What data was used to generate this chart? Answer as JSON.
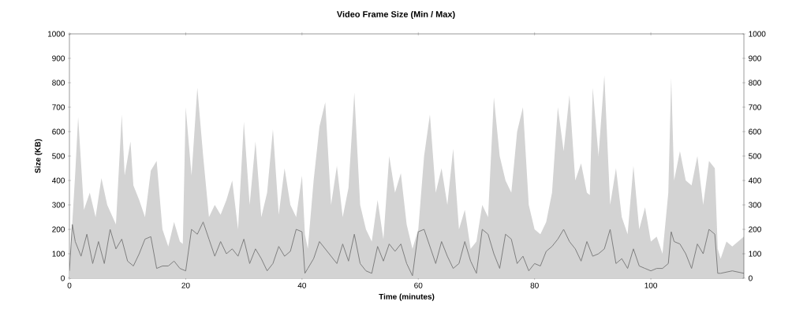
{
  "chart_data": {
    "type": "area",
    "title": "Video Frame Size (Min / Max)",
    "xlabel": "Time (minutes)",
    "ylabel": "Size (KB)",
    "xlim": [
      0,
      116
    ],
    "xticks": [
      0,
      20,
      40,
      60,
      80,
      100
    ],
    "ylim": [
      0,
      1000
    ],
    "yticks": [
      0,
      100,
      200,
      300,
      400,
      500,
      600,
      700,
      800,
      900,
      1000
    ],
    "y2lim": [
      0,
      1000
    ],
    "y2ticks": [
      0,
      100,
      200,
      300,
      400,
      500,
      600,
      700,
      800,
      900,
      1000
    ],
    "series": [
      {
        "color": "#d3d3d3",
        "x": [
          0,
          0.5,
          1,
          1.5,
          2.5,
          3.5,
          4.5,
          5.5,
          6.5,
          8,
          9,
          9.5,
          10.5,
          11,
          12,
          13,
          14,
          15,
          16,
          17,
          18,
          19,
          19.5,
          20,
          21,
          22,
          23,
          24,
          25,
          26,
          27,
          28,
          29,
          30,
          31,
          32,
          33,
          34,
          35,
          36,
          37,
          38,
          39,
          40,
          40.5,
          41,
          42,
          43,
          44,
          45,
          46,
          47,
          48,
          49,
          50,
          51,
          52,
          53,
          54,
          55,
          56,
          57,
          58,
          59,
          60,
          61,
          62,
          63,
          64,
          65,
          66,
          67,
          68,
          69,
          70,
          71,
          72,
          73,
          74,
          75,
          76,
          77,
          78,
          79,
          80,
          81,
          82,
          83,
          84,
          85,
          86,
          87,
          88,
          89,
          89.5,
          90,
          91,
          92,
          93,
          94,
          95,
          96,
          97,
          98,
          99,
          100,
          101,
          102,
          103,
          103.5,
          104,
          105,
          106,
          107,
          108,
          109,
          110,
          111,
          111.5,
          112,
          113,
          114,
          115,
          116
        ],
        "values": [
          0,
          230,
          430,
          660,
          280,
          350,
          250,
          410,
          300,
          220,
          670,
          420,
          560,
          380,
          320,
          250,
          440,
          480,
          200,
          130,
          230,
          150,
          140,
          700,
          420,
          780,
          500,
          250,
          300,
          260,
          320,
          400,
          200,
          640,
          300,
          560,
          250,
          350,
          610,
          260,
          450,
          300,
          250,
          420,
          180,
          120,
          400,
          620,
          720,
          300,
          460,
          250,
          370,
          760,
          300,
          200,
          150,
          320,
          160,
          500,
          350,
          430,
          220,
          120,
          200,
          500,
          670,
          350,
          450,
          300,
          530,
          200,
          280,
          120,
          150,
          300,
          250,
          740,
          500,
          400,
          350,
          600,
          700,
          300,
          200,
          180,
          230,
          350,
          700,
          520,
          750,
          400,
          470,
          350,
          340,
          780,
          500,
          830,
          300,
          450,
          250,
          180,
          460,
          200,
          290,
          150,
          170,
          100,
          350,
          820,
          400,
          520,
          400,
          380,
          500,
          300,
          480,
          450,
          120,
          80,
          150,
          130,
          150,
          170
        ]
      },
      {
        "type": "line",
        "color": "#7f7f7f",
        "x": [
          0,
          0.5,
          1,
          2,
          3,
          4,
          5,
          6,
          7,
          8,
          9,
          10,
          11,
          12,
          13,
          14,
          15,
          16,
          17,
          18,
          19,
          20,
          21,
          22,
          23,
          24,
          25,
          26,
          27,
          28,
          29,
          30,
          31,
          32,
          33,
          34,
          35,
          36,
          37,
          38,
          39,
          40,
          40.5,
          41,
          42,
          43,
          44,
          45,
          46,
          47,
          48,
          49,
          50,
          51,
          52,
          53,
          54,
          55,
          56,
          57,
          58,
          59,
          60,
          61,
          62,
          63,
          64,
          65,
          66,
          67,
          68,
          69,
          70,
          71,
          72,
          73,
          74,
          75,
          76,
          77,
          78,
          79,
          80,
          81,
          82,
          83,
          84,
          85,
          86,
          87,
          88,
          89,
          90,
          91,
          92,
          93,
          94,
          95,
          96,
          97,
          98,
          99,
          100,
          101,
          102,
          103,
          103.5,
          104,
          105,
          106,
          107,
          108,
          109,
          110,
          111,
          111.5,
          112,
          113,
          114,
          115,
          116
        ],
        "values": [
          30,
          220,
          150,
          90,
          180,
          60,
          150,
          60,
          200,
          120,
          160,
          70,
          50,
          100,
          160,
          170,
          40,
          50,
          50,
          70,
          40,
          30,
          200,
          180,
          230,
          160,
          90,
          150,
          100,
          120,
          90,
          160,
          60,
          120,
          80,
          30,
          60,
          130,
          90,
          110,
          200,
          190,
          20,
          40,
          80,
          150,
          120,
          90,
          60,
          140,
          70,
          180,
          60,
          30,
          20,
          130,
          70,
          140,
          110,
          140,
          60,
          10,
          190,
          200,
          130,
          60,
          150,
          90,
          40,
          60,
          150,
          70,
          20,
          200,
          180,
          100,
          40,
          180,
          160,
          60,
          90,
          30,
          60,
          50,
          110,
          130,
          160,
          200,
          150,
          120,
          70,
          150,
          90,
          100,
          120,
          200,
          60,
          80,
          40,
          120,
          50,
          40,
          30,
          40,
          40,
          60,
          190,
          150,
          140,
          100,
          40,
          140,
          100,
          200,
          180,
          20,
          20,
          25,
          30,
          25,
          20
        ]
      }
    ]
  }
}
